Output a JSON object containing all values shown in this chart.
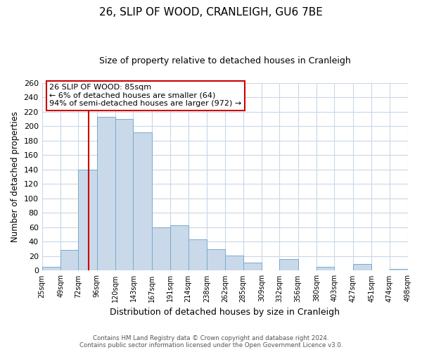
{
  "title": "26, SLIP OF WOOD, CRANLEIGH, GU6 7BE",
  "subtitle": "Size of property relative to detached houses in Cranleigh",
  "xlabel": "Distribution of detached houses by size in Cranleigh",
  "ylabel": "Number of detached properties",
  "bar_color": "#c9d9ea",
  "bar_edge_color": "#7aaaca",
  "property_line_color": "#cc0000",
  "property_value": 85,
  "annotation_line1": "26 SLIP OF WOOD: 85sqm",
  "annotation_line2": "← 6% of detached houses are smaller (64)",
  "annotation_line3": "94% of semi-detached houses are larger (972) →",
  "footer1": "Contains HM Land Registry data © Crown copyright and database right 2024.",
  "footer2": "Contains public sector information licensed under the Open Government Licence v3.0.",
  "bin_edges": [
    25,
    49,
    72,
    96,
    120,
    143,
    167,
    191,
    214,
    238,
    262,
    285,
    309,
    332,
    356,
    380,
    403,
    427,
    451,
    474,
    498
  ],
  "bar_heights": [
    5,
    29,
    140,
    213,
    210,
    192,
    60,
    63,
    43,
    30,
    21,
    11,
    0,
    16,
    0,
    5,
    0,
    9,
    0,
    2
  ],
  "ylim": [
    0,
    260
  ],
  "yticks": [
    0,
    20,
    40,
    60,
    80,
    100,
    120,
    140,
    160,
    180,
    200,
    220,
    240,
    260
  ],
  "background_color": "#ffffff",
  "grid_color": "#c8d8e8"
}
